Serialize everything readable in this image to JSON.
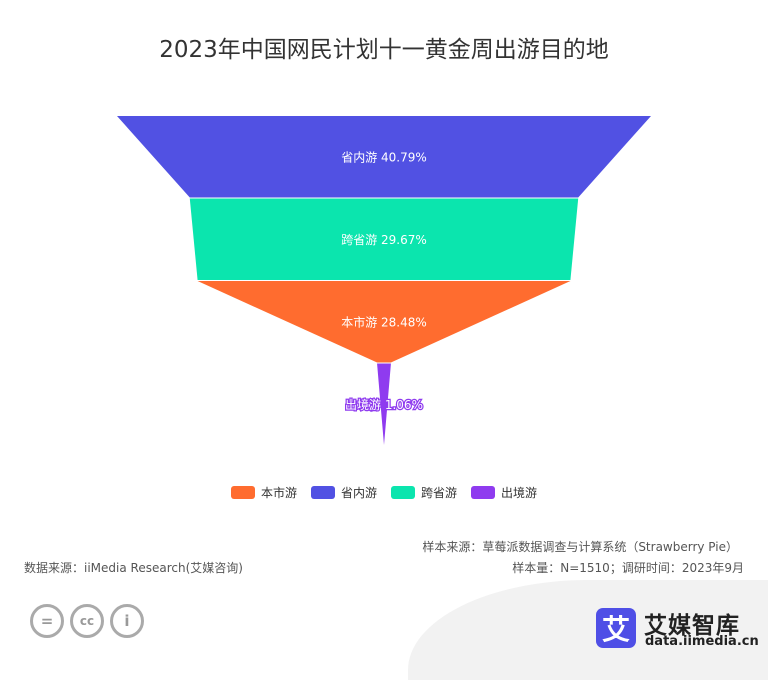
{
  "chart_data": {
    "type": "funnel",
    "title": "2023年中国网民计划十一黄金周出游目的地",
    "categories": [
      "省内游",
      "跨省游",
      "本市游",
      "出境游"
    ],
    "values": [
      40.79,
      29.67,
      28.48,
      1.06
    ],
    "unit": "%",
    "colors": {
      "省内游": "#5151E3",
      "跨省游": "#0BE5AE",
      "本市游": "#FF6C2F",
      "出境游": "#8F3BEF"
    },
    "legend": [
      "本市游",
      "省内游",
      "跨省游",
      "出境游"
    ],
    "legend_placement": "bottom",
    "sort": "descending"
  },
  "footer": {
    "sample_source": "样本来源：草莓派数据调查与计算系统（Strawberry Pie）",
    "data_source": "数据来源：iiMedia Research(艾媒咨询)",
    "sample_size": "样本量：N=1510；调研时间：2023年9月"
  },
  "brand": {
    "logo_char": "艾",
    "name": "艾媒智库",
    "url": "data.iimedia.cn",
    "color": "#4F4FE6"
  },
  "license_icons": [
    "cc-nd-icon",
    "cc-icon",
    "cc-by-icon"
  ]
}
